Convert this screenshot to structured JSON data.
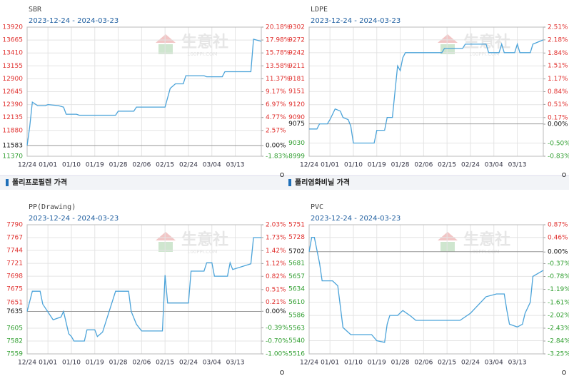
{
  "sections": [
    "폴리프로필렌 가격",
    "폴리염화비닐 가격"
  ],
  "watermark": {
    "brand": "生意社",
    "site": "100PPI.COM"
  },
  "chart_data": [
    {
      "type": "line",
      "title": "SBR",
      "subtitle": "2023-12-24 - 2024-03-23",
      "color": "#4ba3d9",
      "grid": true,
      "xlim": [
        "12/24",
        "03/23"
      ],
      "xticks": [
        "12/24",
        "01/01",
        "01/10",
        "01/19",
        "01/28",
        "02/06",
        "02/15",
        "02/24",
        "03/04",
        "03/13"
      ],
      "ylim": [
        11370,
        13920
      ],
      "yticks": [
        11370,
        11880,
        12135,
        12390,
        12645,
        12900,
        13155,
        13410,
        13665,
        13920
      ],
      "baseline": 11583,
      "y2lim": [
        -1.83,
        20.18
      ],
      "y2ticks": [
        {
          "value": -1.83,
          "label": "-1.83%"
        },
        {
          "value": 0,
          "label": "0.00%"
        },
        {
          "value": 2.57,
          "label": "2.57%"
        },
        {
          "value": 4.77,
          "label": "4.77%"
        },
        {
          "value": 6.97,
          "label": "6.97%"
        },
        {
          "value": 9.17,
          "label": "9.17%"
        },
        {
          "value": 11.37,
          "label": "11.37%"
        },
        {
          "value": 13.58,
          "label": "13.58%"
        },
        {
          "value": 15.78,
          "label": "15.78%"
        },
        {
          "value": 17.98,
          "label": "17.98%"
        },
        {
          "value": 20.18,
          "label": "20.18%"
        }
      ],
      "x": [
        "12/24",
        "12/25",
        "12/26",
        "12/28",
        "12/31",
        "01/01",
        "01/05",
        "01/07",
        "01/08",
        "01/12",
        "01/13",
        "01/27",
        "01/28",
        "02/03",
        "02/04",
        "02/15",
        "02/17",
        "02/19",
        "02/22",
        "02/23",
        "03/01",
        "03/02",
        "03/08",
        "03/09",
        "03/19",
        "03/20",
        "03/23"
      ],
      "values": [
        11583,
        11950,
        12440,
        12370,
        12370,
        12390,
        12370,
        12340,
        12200,
        12200,
        12180,
        12180,
        12260,
        12260,
        12340,
        12340,
        12710,
        12800,
        12800,
        12960,
        12960,
        12940,
        12940,
        13040,
        13040,
        13680,
        13640
      ]
    },
    {
      "type": "line",
      "title": "LDPE",
      "subtitle": "2023-12-24 - 2024-03-23",
      "color": "#4ba3d9",
      "grid": true,
      "xlim": [
        "12/24",
        "03/23"
      ],
      "xticks": [
        "12/24",
        "01/01",
        "01/10",
        "01/19",
        "01/28",
        "02/06",
        "02/15",
        "02/24",
        "03/04",
        "03/13"
      ],
      "ylim": [
        8999,
        9302
      ],
      "yticks": [
        8999,
        9030,
        9090,
        9120,
        9151,
        9181,
        9211,
        9242,
        9272,
        9302
      ],
      "baseline": 9075,
      "y2lim": [
        -0.83,
        2.51
      ],
      "y2ticks": [
        {
          "value": -0.83,
          "label": "-0.83%"
        },
        {
          "value": -0.5,
          "label": "-0.50%"
        },
        {
          "value": 0,
          "label": "0.00%"
        },
        {
          "value": 0.17,
          "label": "0.17%"
        },
        {
          "value": 0.51,
          "label": "0.51%"
        },
        {
          "value": 0.84,
          "label": "0.84%"
        },
        {
          "value": 1.17,
          "label": "1.17%"
        },
        {
          "value": 1.51,
          "label": "1.51%"
        },
        {
          "value": 1.84,
          "label": "1.84%"
        },
        {
          "value": 2.18,
          "label": "2.18%"
        },
        {
          "value": 2.51,
          "label": "2.51%"
        }
      ],
      "x": [
        "12/24",
        "12/27",
        "12/28",
        "12/31",
        "01/01",
        "01/03",
        "01/05",
        "01/06",
        "01/08",
        "01/09",
        "01/10",
        "01/18",
        "01/19",
        "01/22",
        "01/23",
        "01/25",
        "01/27",
        "01/28",
        "01/29",
        "01/30",
        "02/13",
        "02/14",
        "02/21",
        "02/22",
        "03/01",
        "03/02",
        "03/06",
        "03/07",
        "03/08",
        "03/12",
        "03/13",
        "03/14",
        "03/18",
        "03/19",
        "03/23"
      ],
      "values": [
        9063,
        9063,
        9075,
        9075,
        9085,
        9110,
        9105,
        9090,
        9085,
        9070,
        9030,
        9030,
        9060,
        9060,
        9090,
        9090,
        9211,
        9200,
        9230,
        9242,
        9242,
        9252,
        9252,
        9262,
        9262,
        9242,
        9242,
        9262,
        9242,
        9242,
        9262,
        9242,
        9242,
        9262,
        9272
      ]
    },
    {
      "type": "line",
      "title": "PP(Drawing)",
      "subtitle": "2023-12-24 - 2024-03-23",
      "color": "#4ba3d9",
      "grid": true,
      "xlim": [
        "12/24",
        "03/23"
      ],
      "xticks": [
        "12/24",
        "01/01",
        "01/10",
        "01/19",
        "01/28",
        "02/06",
        "02/15",
        "02/24",
        "03/04",
        "03/13"
      ],
      "ylim": [
        7559,
        7790
      ],
      "yticks": [
        7559,
        7582,
        7605,
        7651,
        7675,
        7698,
        7721,
        7744,
        7767,
        7790
      ],
      "baseline": 7635,
      "y2lim": [
        -1.0,
        2.03
      ],
      "y2ticks": [
        {
          "value": -1.0,
          "label": "-1.00%"
        },
        {
          "value": -0.7,
          "label": "-0.70%"
        },
        {
          "value": -0.39,
          "label": "-0.39%"
        },
        {
          "value": 0,
          "label": "0.00%"
        },
        {
          "value": 0.21,
          "label": "0.21%"
        },
        {
          "value": 0.51,
          "label": "0.51%"
        },
        {
          "value": 0.82,
          "label": "0.82%"
        },
        {
          "value": 1.12,
          "label": "1.12%"
        },
        {
          "value": 1.42,
          "label": "1.42%"
        },
        {
          "value": 1.73,
          "label": "1.73%"
        },
        {
          "value": 2.03,
          "label": "2.03%"
        }
      ],
      "x": [
        "12/24",
        "12/26",
        "12/29",
        "12/30",
        "01/03",
        "01/06",
        "01/07",
        "01/09",
        "01/10",
        "01/11",
        "01/15",
        "01/16",
        "01/19",
        "01/20",
        "01/22",
        "01/27",
        "02/01",
        "02/02",
        "02/04",
        "02/06",
        "02/14",
        "02/15",
        "02/16",
        "02/24",
        "02/25",
        "03/01",
        "03/02",
        "03/04",
        "03/05",
        "03/10",
        "03/11",
        "03/12",
        "03/19",
        "03/20",
        "03/23"
      ],
      "values": [
        7635,
        7671,
        7671,
        7648,
        7620,
        7625,
        7635,
        7595,
        7590,
        7582,
        7582,
        7602,
        7602,
        7590,
        7598,
        7671,
        7671,
        7635,
        7612,
        7600,
        7600,
        7700,
        7650,
        7650,
        7707,
        7707,
        7722,
        7722,
        7698,
        7698,
        7722,
        7710,
        7720,
        7767,
        7767
      ]
    },
    {
      "type": "line",
      "title": "PVC",
      "subtitle": "2023-12-24 - 2024-03-23",
      "color": "#4ba3d9",
      "grid": true,
      "xlim": [
        "12/24",
        "03/23"
      ],
      "xticks": [
        "12/24",
        "01/01",
        "01/10",
        "01/19",
        "01/28",
        "02/06",
        "02/15",
        "02/24",
        "03/04",
        "03/13"
      ],
      "ylim": [
        5516,
        5751
      ],
      "yticks": [
        5516,
        5540,
        5563,
        5586,
        5610,
        5634,
        5657,
        5681,
        5728,
        5751
      ],
      "baseline": 5702,
      "y2lim": [
        -3.25,
        0.87
      ],
      "y2ticks": [
        {
          "value": -3.25,
          "label": "-3.25%"
        },
        {
          "value": -2.84,
          "label": "-2.84%"
        },
        {
          "value": -2.43,
          "label": "-2.43%"
        },
        {
          "value": -2.02,
          "label": "-2.02%"
        },
        {
          "value": -1.61,
          "label": "-1.61%"
        },
        {
          "value": -1.19,
          "label": "-1.19%"
        },
        {
          "value": -0.78,
          "label": "-0.78%"
        },
        {
          "value": -0.37,
          "label": "-0.37%"
        },
        {
          "value": 0,
          "label": "0.00%"
        },
        {
          "value": 0.46,
          "label": "0.46%"
        },
        {
          "value": 0.87,
          "label": "0.87%"
        }
      ],
      "x": [
        "12/24",
        "12/25",
        "12/26",
        "12/28",
        "12/29",
        "01/02",
        "01/04",
        "01/06",
        "01/09",
        "01/17",
        "01/19",
        "01/22",
        "01/23",
        "01/24",
        "01/27",
        "01/29",
        "02/01",
        "02/03",
        "02/20",
        "02/24",
        "02/26",
        "03/01",
        "03/05",
        "03/08",
        "03/09",
        "03/10",
        "03/13",
        "03/15",
        "03/16",
        "03/18",
        "03/19",
        "03/23"
      ],
      "values": [
        5702,
        5728,
        5728,
        5681,
        5649,
        5649,
        5640,
        5564,
        5551,
        5551,
        5540,
        5537,
        5570,
        5586,
        5586,
        5595,
        5585,
        5577,
        5577,
        5590,
        5600,
        5620,
        5625,
        5625,
        5595,
        5570,
        5565,
        5570,
        5590,
        5610,
        5657,
        5668
      ]
    }
  ]
}
